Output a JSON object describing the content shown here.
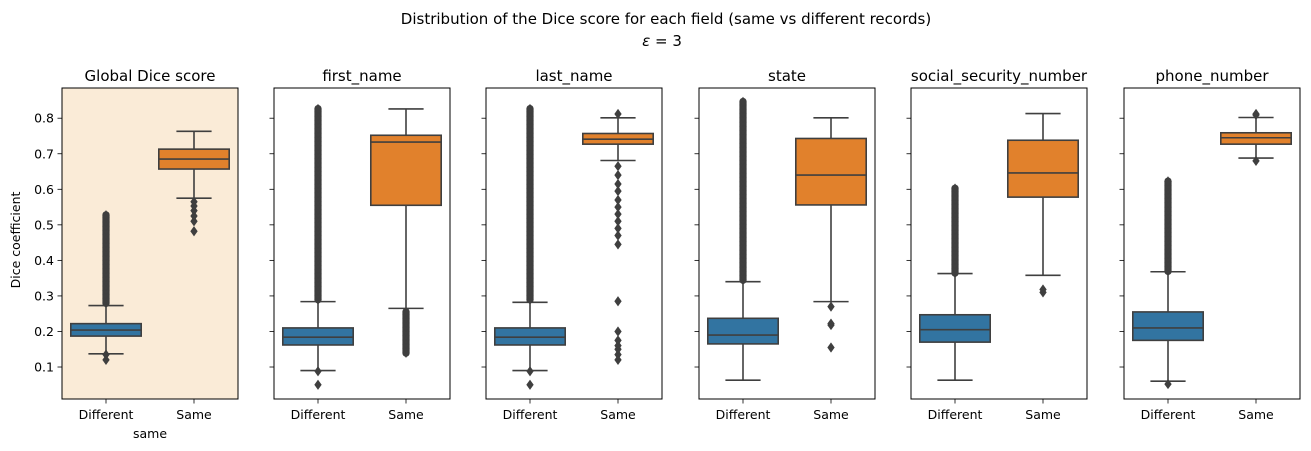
{
  "chart_data": {
    "type": "box",
    "title": "Distribution of the Dice score for each field (same vs different records)",
    "subtitle_prefix": "ε",
    "subtitle_suffix": " = 3",
    "ylabel": "Dice coefficient",
    "xlabel": "same",
    "ylim": [
      0.01,
      0.885
    ],
    "yticks": [
      0.1,
      0.2,
      0.3,
      0.4,
      0.5,
      0.6,
      0.7,
      0.8
    ],
    "ytick_labels": [
      "0.1",
      "0.2",
      "0.3",
      "0.4",
      "0.5",
      "0.6",
      "0.7",
      "0.8"
    ],
    "categories": [
      "Different",
      "Same"
    ],
    "colors": {
      "Different": "#3274a1",
      "Same": "#e1812c",
      "highlight_bg": "#faebd7",
      "line": "#3f3f3f"
    },
    "panels": [
      {
        "title": "Global Dice score",
        "highlight": true,
        "boxes": [
          {
            "group": "Different",
            "whislo": 0.137,
            "q1": 0.187,
            "med": 0.204,
            "q3": 0.222,
            "whishi": 0.273,
            "fliers_low": [
              0.12,
              0.135
            ],
            "fliers_high_range": [
              0.28,
              0.527
            ]
          },
          {
            "group": "Same",
            "whislo": 0.575,
            "q1": 0.657,
            "med": 0.685,
            "q3": 0.713,
            "whishi": 0.763,
            "fliers_low": [
              0.482,
              0.51,
              0.525,
              0.54,
              0.553,
              0.565
            ],
            "fliers_high": []
          }
        ]
      },
      {
        "title": "first_name",
        "highlight": false,
        "boxes": [
          {
            "group": "Different",
            "whislo": 0.09,
            "q1": 0.162,
            "med": 0.184,
            "q3": 0.21,
            "whishi": 0.284,
            "fliers_low": [
              0.05,
              0.088
            ],
            "fliers_high_range": [
              0.29,
              0.826
            ]
          },
          {
            "group": "Same",
            "whislo": 0.265,
            "q1": 0.555,
            "med": 0.733,
            "q3": 0.752,
            "whishi": 0.826,
            "fliers_low_range": [
              0.14,
              0.255
            ],
            "fliers_high": []
          }
        ]
      },
      {
        "title": "last_name",
        "highlight": false,
        "boxes": [
          {
            "group": "Different",
            "whislo": 0.09,
            "q1": 0.162,
            "med": 0.184,
            "q3": 0.21,
            "whishi": 0.282,
            "fliers_low": [
              0.05,
              0.088
            ],
            "fliers_high_range": [
              0.29,
              0.826
            ]
          },
          {
            "group": "Same",
            "whislo": 0.681,
            "q1": 0.727,
            "med": 0.741,
            "q3": 0.757,
            "whishi": 0.801,
            "fliers_low": [
              0.12,
              0.135,
              0.15,
              0.16,
              0.175,
              0.2,
              0.285,
              0.445,
              0.47,
              0.49,
              0.51,
              0.53,
              0.55,
              0.57,
              0.595,
              0.615,
              0.64,
              0.665
            ],
            "fliers_high": [
              0.812
            ]
          }
        ]
      },
      {
        "title": "state",
        "highlight": false,
        "boxes": [
          {
            "group": "Different",
            "whislo": 0.063,
            "q1": 0.165,
            "med": 0.19,
            "q3": 0.237,
            "whishi": 0.34,
            "fliers_low": [],
            "fliers_high_range": [
              0.345,
              0.846
            ]
          },
          {
            "group": "Same",
            "whislo": 0.284,
            "q1": 0.556,
            "med": 0.64,
            "q3": 0.743,
            "whishi": 0.801,
            "fliers_low": [
              0.155,
              0.218,
              0.222,
              0.27
            ],
            "fliers_high": []
          }
        ]
      },
      {
        "title": "social_security_number",
        "highlight": false,
        "boxes": [
          {
            "group": "Different",
            "whislo": 0.063,
            "q1": 0.17,
            "med": 0.205,
            "q3": 0.247,
            "whishi": 0.363,
            "fliers_low": [],
            "fliers_high_range": [
              0.365,
              0.602
            ]
          },
          {
            "group": "Same",
            "whislo": 0.358,
            "q1": 0.578,
            "med": 0.646,
            "q3": 0.738,
            "whishi": 0.813,
            "fliers_low": [
              0.31,
              0.318
            ],
            "fliers_high": []
          }
        ]
      },
      {
        "title": "phone_number",
        "highlight": false,
        "boxes": [
          {
            "group": "Different",
            "whislo": 0.06,
            "q1": 0.175,
            "med": 0.21,
            "q3": 0.255,
            "whishi": 0.368,
            "fliers_low": [
              0.052
            ],
            "fliers_high_range": [
              0.37,
              0.622
            ]
          },
          {
            "group": "Same",
            "whislo": 0.688,
            "q1": 0.727,
            "med": 0.745,
            "q3": 0.759,
            "whishi": 0.802,
            "fliers_low": [
              0.68
            ],
            "fliers_high": [
              0.809,
              0.812
            ]
          }
        ]
      }
    ]
  }
}
